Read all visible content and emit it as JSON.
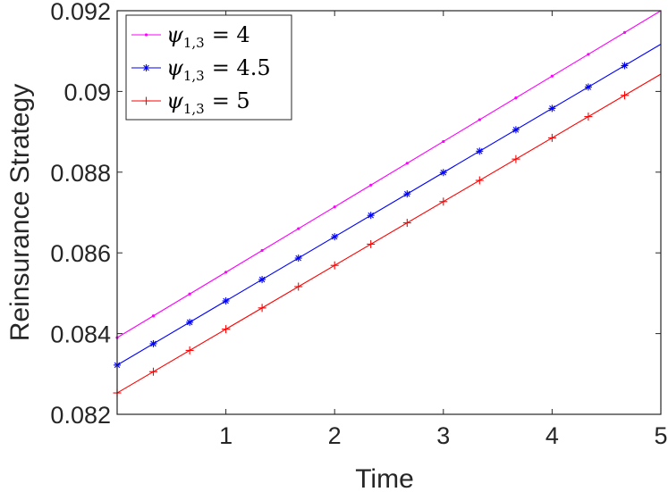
{
  "chart_data": {
    "type": "line",
    "title": "",
    "xlabel": "Time",
    "ylabel": "Reinsurance Strategy",
    "xlim": [
      0,
      5
    ],
    "ylim": [
      0.082,
      0.092
    ],
    "x_ticks": [
      1,
      2,
      3,
      4,
      5
    ],
    "x_tick_labels": [
      "1",
      "2",
      "3",
      "4",
      "5"
    ],
    "y_ticks": [
      0.082,
      0.084,
      0.086,
      0.088,
      0.09,
      0.092
    ],
    "y_tick_labels": [
      "0.082",
      "0.084",
      "0.086",
      "0.088",
      "0.09",
      "0.092"
    ],
    "grid": false,
    "legend_position": "top-left",
    "series": [
      {
        "name": "ψ1,3 = 4",
        "legend_symbol": "ψ",
        "legend_subscript": "1,3",
        "legend_value": "= 4",
        "color": "#ff00ff",
        "marker": "dot",
        "x": [
          0,
          5
        ],
        "y": [
          0.0839,
          0.092
        ],
        "marker_x": [
          0,
          0.333,
          0.667,
          1,
          1.333,
          1.667,
          2,
          2.333,
          2.667,
          3,
          3.333,
          3.667,
          4,
          4.333,
          4.667
        ]
      },
      {
        "name": "ψ1,3 = 4.5",
        "legend_symbol": "ψ",
        "legend_subscript": "1,3",
        "legend_value": "= 4.5",
        "color": "#0000ff",
        "marker": "asterisk",
        "x": [
          0,
          5
        ],
        "y": [
          0.08322,
          0.09117
        ],
        "marker_x": [
          0,
          0.333,
          0.667,
          1,
          1.333,
          1.667,
          2,
          2.333,
          2.667,
          3,
          3.333,
          3.667,
          4,
          4.333,
          4.667
        ]
      },
      {
        "name": "ψ1,3 = 5",
        "legend_symbol": "ψ",
        "legend_subscript": "1,3",
        "legend_value": "= 5",
        "color": "#ff0000",
        "marker": "plus",
        "x": [
          0,
          5
        ],
        "y": [
          0.08253,
          0.09043
        ],
        "marker_x": [
          0,
          0.333,
          0.667,
          1,
          1.333,
          1.667,
          2,
          2.333,
          2.667,
          3,
          3.333,
          3.667,
          4,
          4.333,
          4.667
        ]
      }
    ]
  }
}
